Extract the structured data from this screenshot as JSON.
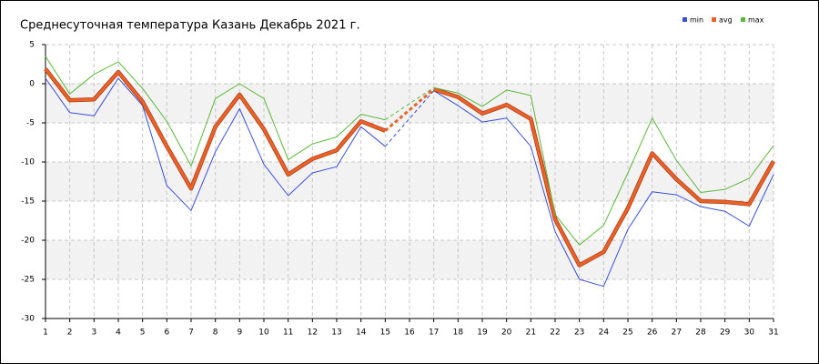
{
  "chart_data": {
    "type": "line",
    "title": "Среднесуточная температура Казань  Декабрь 2021 г.",
    "categories": [
      "1",
      "2",
      "3",
      "4",
      "5",
      "6",
      "7",
      "8",
      "9",
      "10",
      "11",
      "12",
      "13",
      "14",
      "15",
      "16",
      "17",
      "18",
      "19",
      "20",
      "21",
      "22",
      "23",
      "24",
      "25",
      "26",
      "27",
      "28",
      "29",
      "30",
      "31"
    ],
    "series": [
      {
        "name": "min",
        "color": "#3a4fd8",
        "values": [
          0.7,
          -3.7,
          -4.1,
          0.7,
          -2.8,
          -13.0,
          -16.2,
          -8.7,
          -3.2,
          -10.3,
          -14.3,
          -11.4,
          -10.6,
          -5.5,
          -8.0,
          null,
          -0.9,
          -2.8,
          -4.9,
          -4.4,
          -8.0,
          -18.9,
          -25.0,
          -25.9,
          -18.6,
          -13.8,
          -14.2,
          -15.7,
          -16.3,
          -18.2,
          -11.6
        ]
      },
      {
        "name": "avg",
        "color": "#e8622a",
        "values": [
          1.9,
          -2.1,
          -2.0,
          1.5,
          -2.3,
          -8.0,
          -13.4,
          -5.5,
          -1.4,
          -5.8,
          -11.6,
          -9.6,
          -8.5,
          -4.8,
          -6.0,
          null,
          -0.7,
          -1.7,
          -3.8,
          -2.7,
          -4.5,
          -17.3,
          -23.2,
          -21.5,
          -15.9,
          -8.9,
          -12.2,
          -15.0,
          -15.1,
          -15.4,
          -9.9
        ]
      },
      {
        "name": "max",
        "color": "#5cb83a",
        "values": [
          3.5,
          -1.3,
          1.2,
          2.8,
          -0.6,
          -4.8,
          -10.5,
          -1.9,
          0.0,
          -1.9,
          -9.7,
          -7.7,
          -6.8,
          -3.9,
          -4.6,
          null,
          -0.5,
          -1.2,
          -2.9,
          -0.8,
          -1.5,
          -16.7,
          -20.6,
          -18.1,
          -11.4,
          -4.4,
          -9.8,
          -13.9,
          -13.5,
          -12.1,
          -7.9
        ]
      }
    ],
    "ylim": [
      -30,
      5
    ],
    "yticks": [
      5,
      0,
      -5,
      -10,
      -15,
      -20,
      -25,
      -30
    ],
    "grid": true
  }
}
